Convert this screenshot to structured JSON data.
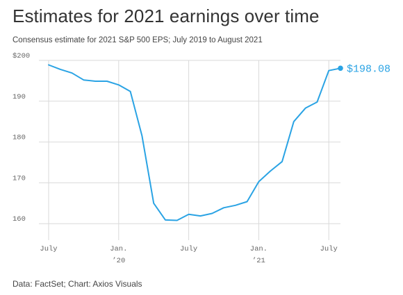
{
  "title": "Estimates for 2021 earnings over time",
  "subtitle": "Consensus estimate for 2021 S&P 500 EPS; July 2019 to August 2021",
  "source": "Data: FactSet; Chart: Axios Visuals",
  "colors": {
    "line": "#2aa3e4",
    "grid": "#d9d9d9",
    "tick_text": "#666666"
  },
  "chart_data": {
    "type": "line",
    "title": "Estimates for 2021 earnings over time",
    "subtitle": "Consensus estimate for 2021 S&P 500 EPS; July 2019 to August 2021",
    "xlabel": "",
    "ylabel": "",
    "x_ticks": [
      {
        "x": "2019-07",
        "label": "July",
        "sublabel": ""
      },
      {
        "x": "2020-01",
        "label": "Jan.",
        "sublabel": "’20"
      },
      {
        "x": "2020-07",
        "label": "July",
        "sublabel": ""
      },
      {
        "x": "2021-01",
        "label": "Jan.",
        "sublabel": "’21"
      },
      {
        "x": "2021-07",
        "label": "July",
        "sublabel": ""
      }
    ],
    "y_ticks": [
      {
        "value": 200,
        "label": "$200"
      },
      {
        "value": 190,
        "label": "190"
      },
      {
        "value": 180,
        "label": "180"
      },
      {
        "value": 170,
        "label": "170"
      },
      {
        "value": 160,
        "label": "160"
      }
    ],
    "xlim": [
      "2019-07",
      "2021-08"
    ],
    "ylim": [
      158,
      200
    ],
    "grid": true,
    "series": [
      {
        "x": [
          "2019-07",
          "2019-08",
          "2019-09",
          "2019-10",
          "2019-11",
          "2019-12",
          "2020-01",
          "2020-02",
          "2020-03",
          "2020-04",
          "2020-05",
          "2020-06",
          "2020-07",
          "2020-08",
          "2020-09",
          "2020-10",
          "2020-11",
          "2020-12",
          "2021-01",
          "2021-02",
          "2021-03",
          "2021-04",
          "2021-05",
          "2021-06",
          "2021-07",
          "2021-08"
        ],
        "values": [
          198.9,
          197.8,
          196.9,
          195.2,
          194.9,
          194.9,
          194.0,
          192.4,
          181.5,
          165.0,
          160.9,
          160.8,
          162.3,
          161.9,
          162.5,
          163.9,
          164.5,
          165.4,
          170.3,
          172.9,
          175.2,
          185.0,
          188.3,
          189.8,
          197.5,
          198.08
        ]
      }
    ],
    "end_label": "$198.08"
  }
}
